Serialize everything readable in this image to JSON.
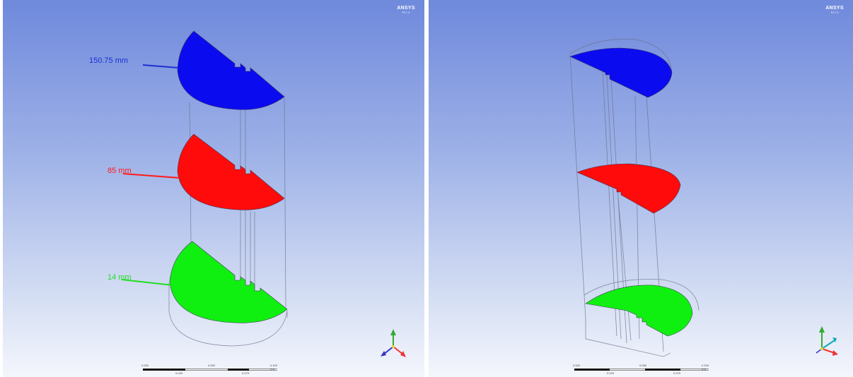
{
  "viewports": {
    "left": {
      "logo": {
        "brand": "ANSYS",
        "version": "R17.0"
      },
      "dimension_labels": [
        {
          "text": "150.75 mm",
          "color": "#1d2fd6"
        },
        {
          "text": "85 mm",
          "color": "#ff1a1a"
        },
        {
          "text": "14 mm",
          "color": "#22dd22"
        }
      ],
      "scale_labels": [
        "0.000",
        "0.050",
        "0.100 (m)",
        "0.025",
        "0.075"
      ],
      "slices": [
        {
          "color": "#0b0bf0"
        },
        {
          "color": "#ff0b0b"
        },
        {
          "color": "#10f010"
        }
      ],
      "triad": {
        "x_color": "#e33",
        "y_color": "#3a3",
        "z_color": "#33c"
      }
    },
    "right": {
      "logo": {
        "brand": "ANSYS",
        "version": "R17.0"
      },
      "scale_labels": [
        "0.000",
        "0.050",
        "0.100 (m)",
        "0.025",
        "0.075"
      ],
      "slices": [
        {
          "color": "#0b0bf0"
        },
        {
          "color": "#ff0b0b"
        },
        {
          "color": "#10f010"
        }
      ],
      "triad": {
        "x_color": "#e33",
        "y_color": "#3a3",
        "z_color": "#1ab"
      }
    }
  }
}
